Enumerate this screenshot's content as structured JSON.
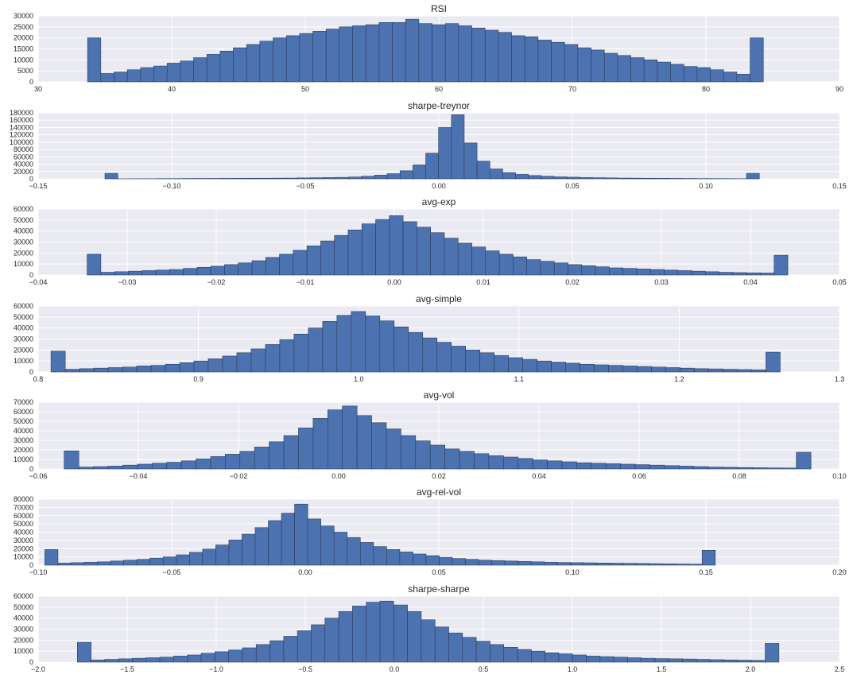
{
  "colors": {
    "background": "#ffffff",
    "plot_bg": "#eaeaf2",
    "grid": "#ffffff",
    "bar": "#4c72b0",
    "bar_edge": "#2b3e60"
  },
  "chart_data": [
    {
      "type": "histogram",
      "title": "RSI",
      "xlim": [
        30,
        90
      ],
      "ylim": [
        0,
        30000
      ],
      "xticks": [
        30,
        40,
        50,
        60,
        70,
        80,
        90
      ],
      "xtick_labels": [
        "30",
        "40",
        "50",
        "60",
        "70",
        "80",
        "90"
      ],
      "yticks": [
        0,
        5000,
        10000,
        15000,
        20000,
        25000,
        30000
      ],
      "ytick_labels": [
        "0",
        "5000",
        "10000",
        "15000",
        "20000",
        "25000",
        "30000"
      ],
      "grid": true,
      "bin_range": [
        33.7,
        84.3
      ],
      "values": [
        20000,
        3800,
        4500,
        5500,
        6500,
        7200,
        8500,
        9500,
        11000,
        12500,
        14000,
        15500,
        17000,
        18500,
        20000,
        21000,
        22000,
        23000,
        24000,
        25000,
        25500,
        26000,
        27000,
        27000,
        28500,
        26500,
        26000,
        26500,
        25500,
        24500,
        23500,
        22500,
        21000,
        20500,
        19000,
        18000,
        17000,
        15500,
        14500,
        13000,
        12000,
        11000,
        10000,
        9000,
        8000,
        7000,
        6500,
        5500,
        4500,
        3500,
        20000
      ]
    },
    {
      "type": "histogram",
      "title": "sharpe-treynor",
      "xlim": [
        -0.15,
        0.15
      ],
      "ylim": [
        0,
        180000
      ],
      "xticks": [
        -0.15,
        -0.1,
        -0.05,
        0.0,
        0.05,
        0.1,
        0.15
      ],
      "xtick_labels": [
        "−0.15",
        "−0.10",
        "−0.05",
        "0.00",
        "0.05",
        "0.10",
        "0.15"
      ],
      "yticks": [
        0,
        20000,
        40000,
        60000,
        80000,
        100000,
        120000,
        140000,
        160000,
        180000
      ],
      "ytick_labels": [
        "0",
        "20000",
        "40000",
        "60000",
        "80000",
        "100000",
        "120000",
        "140000",
        "160000",
        "180000"
      ],
      "grid": true,
      "bin_range": [
        -0.125,
        0.12
      ],
      "values": [
        15000,
        100,
        200,
        300,
        500,
        600,
        800,
        900,
        1000,
        1200,
        1300,
        1500,
        1600,
        1800,
        2000,
        2500,
        3000,
        3500,
        4000,
        5000,
        7000,
        10000,
        14000,
        22000,
        38000,
        70000,
        140000,
        175000,
        98000,
        48000,
        27000,
        17000,
        12000,
        9000,
        7000,
        5500,
        4500,
        3500,
        3000,
        2500,
        2000,
        1700,
        1500,
        1300,
        1100,
        900,
        700,
        600,
        500,
        300,
        15000
      ]
    },
    {
      "type": "histogram",
      "title": "avg-exp",
      "xlim": [
        -0.04,
        0.05
      ],
      "ylim": [
        0,
        60000
      ],
      "xticks": [
        -0.04,
        -0.03,
        -0.02,
        -0.01,
        0.0,
        0.01,
        0.02,
        0.03,
        0.04,
        0.05
      ],
      "xtick_labels": [
        "−0.04",
        "−0.03",
        "−0.02",
        "−0.01",
        "0.00",
        "0.01",
        "0.02",
        "0.03",
        "0.04",
        "0.05"
      ],
      "yticks": [
        0,
        10000,
        20000,
        30000,
        40000,
        50000,
        60000
      ],
      "ytick_labels": [
        "0",
        "10000",
        "20000",
        "30000",
        "40000",
        "50000",
        "60000"
      ],
      "grid": true,
      "bin_range": [
        -0.0345,
        0.0442
      ],
      "values": [
        19000,
        2500,
        3000,
        3500,
        4000,
        4500,
        5000,
        6000,
        7000,
        8000,
        9500,
        11000,
        13000,
        16000,
        19000,
        22500,
        26500,
        31000,
        36000,
        41000,
        46500,
        50500,
        54000,
        48500,
        43500,
        38500,
        33500,
        29000,
        25500,
        22000,
        19000,
        16500,
        14000,
        12500,
        11000,
        9500,
        8500,
        7500,
        6500,
        6000,
        5500,
        5000,
        4500,
        4000,
        3500,
        3000,
        2500,
        2200,
        2000,
        1800,
        18000
      ]
    },
    {
      "type": "histogram",
      "title": "avg-simple",
      "xlim": [
        0.8,
        1.3
      ],
      "ylim": [
        0,
        60000
      ],
      "xticks": [
        0.8,
        0.9,
        1.0,
        1.1,
        1.2,
        1.3
      ],
      "xtick_labels": [
        "0.8",
        "0.9",
        "1.0",
        "1.1",
        "1.2",
        "1.3"
      ],
      "yticks": [
        0,
        10000,
        20000,
        30000,
        40000,
        50000,
        60000
      ],
      "ytick_labels": [
        "0",
        "10000",
        "20000",
        "30000",
        "40000",
        "50000",
        "60000"
      ],
      "grid": true,
      "bin_range": [
        0.808,
        1.263
      ],
      "values": [
        19000,
        2500,
        3000,
        3500,
        4000,
        4500,
        5500,
        6000,
        7000,
        8500,
        10000,
        12000,
        14500,
        17500,
        21000,
        25000,
        29500,
        34500,
        40000,
        46000,
        51500,
        55000,
        51000,
        46500,
        41000,
        36000,
        31000,
        27000,
        23500,
        20000,
        17500,
        15000,
        13000,
        11500,
        10000,
        9000,
        8000,
        7000,
        6500,
        6000,
        5500,
        5000,
        4500,
        4000,
        3500,
        3000,
        2800,
        2500,
        2200,
        2000,
        18000
      ]
    },
    {
      "type": "histogram",
      "title": "avg-vol",
      "xlim": [
        -0.06,
        0.1
      ],
      "ylim": [
        0,
        70000
      ],
      "xticks": [
        -0.06,
        -0.04,
        -0.02,
        0.0,
        0.02,
        0.04,
        0.06,
        0.08,
        0.1
      ],
      "xtick_labels": [
        "−0.06",
        "−0.04",
        "−0.02",
        "0.00",
        "0.02",
        "0.04",
        "0.06",
        "0.08",
        "0.10"
      ],
      "yticks": [
        0,
        10000,
        20000,
        30000,
        40000,
        50000,
        60000,
        70000
      ],
      "ytick_labels": [
        "0",
        "10000",
        "20000",
        "30000",
        "40000",
        "50000",
        "60000",
        "70000"
      ],
      "grid": true,
      "bin_range": [
        -0.0548,
        0.0943
      ],
      "values": [
        19000,
        2000,
        2500,
        3000,
        4000,
        5000,
        6000,
        7000,
        8500,
        10500,
        13000,
        15500,
        18500,
        23000,
        28500,
        35000,
        43000,
        53000,
        62000,
        66000,
        56000,
        48500,
        42000,
        35000,
        29500,
        25000,
        21000,
        18500,
        16000,
        14000,
        12500,
        11000,
        9500,
        8500,
        7500,
        6500,
        6000,
        5500,
        5000,
        4500,
        4000,
        3500,
        3000,
        2500,
        2000,
        1800,
        1500,
        1300,
        1100,
        1000,
        17500
      ]
    },
    {
      "type": "histogram",
      "title": "avg-rel-vol",
      "xlim": [
        -0.1,
        0.2
      ],
      "ylim": [
        0,
        80000
      ],
      "xticks": [
        -0.1,
        -0.05,
        0.0,
        0.05,
        0.1,
        0.15,
        0.2
      ],
      "xtick_labels": [
        "−0.10",
        "−0.05",
        "0.00",
        "0.05",
        "0.10",
        "0.15",
        "0.20"
      ],
      "yticks": [
        0,
        10000,
        20000,
        30000,
        40000,
        50000,
        60000,
        70000,
        80000
      ],
      "ytick_labels": [
        "0",
        "10000",
        "20000",
        "30000",
        "40000",
        "50000",
        "60000",
        "70000",
        "80000"
      ],
      "grid": true,
      "bin_range": [
        -0.0975,
        0.1535
      ],
      "values": [
        19000,
        2500,
        3000,
        3500,
        4000,
        5000,
        6000,
        7000,
        8500,
        10000,
        12500,
        15500,
        19500,
        24500,
        30500,
        37500,
        45500,
        54000,
        63000,
        74000,
        56000,
        47500,
        40000,
        33500,
        27500,
        22500,
        19000,
        16000,
        13500,
        11500,
        9500,
        8000,
        7000,
        6000,
        5500,
        5000,
        4500,
        4000,
        3500,
        3200,
        3000,
        2800,
        2600,
        2400,
        2200,
        2000,
        1800,
        1600,
        1400,
        1200,
        18000
      ]
    },
    {
      "type": "histogram",
      "title": "sharpe-sharpe",
      "xlim": [
        -2.0,
        2.5
      ],
      "ylim": [
        0,
        60000
      ],
      "xticks": [
        -2.0,
        -1.5,
        -1.0,
        -0.5,
        0.0,
        0.5,
        1.0,
        1.5,
        2.0,
        2.5
      ],
      "xtick_labels": [
        "−2.0",
        "−1.5",
        "−1.0",
        "−0.5",
        "0.0",
        "0.5",
        "1.0",
        "1.5",
        "2.0",
        "2.5"
      ],
      "yticks": [
        0,
        10000,
        20000,
        30000,
        40000,
        50000,
        60000
      ],
      "ytick_labels": [
        "0",
        "10000",
        "20000",
        "30000",
        "40000",
        "50000",
        "60000"
      ],
      "grid": true,
      "bin_range": [
        -1.78,
        2.16
      ],
      "values": [
        18000,
        2000,
        2500,
        3000,
        3500,
        4000,
        4500,
        5500,
        6500,
        8000,
        9500,
        11000,
        13000,
        16000,
        19500,
        23500,
        28500,
        34000,
        40000,
        46000,
        51000,
        54500,
        55500,
        52000,
        46000,
        38500,
        32000,
        26500,
        22500,
        19000,
        16000,
        13500,
        11500,
        10000,
        8500,
        7500,
        6500,
        5500,
        5000,
        4500,
        4000,
        3500,
        3200,
        3000,
        2800,
        2500,
        2200,
        2000,
        1800,
        1600,
        17000
      ]
    }
  ]
}
